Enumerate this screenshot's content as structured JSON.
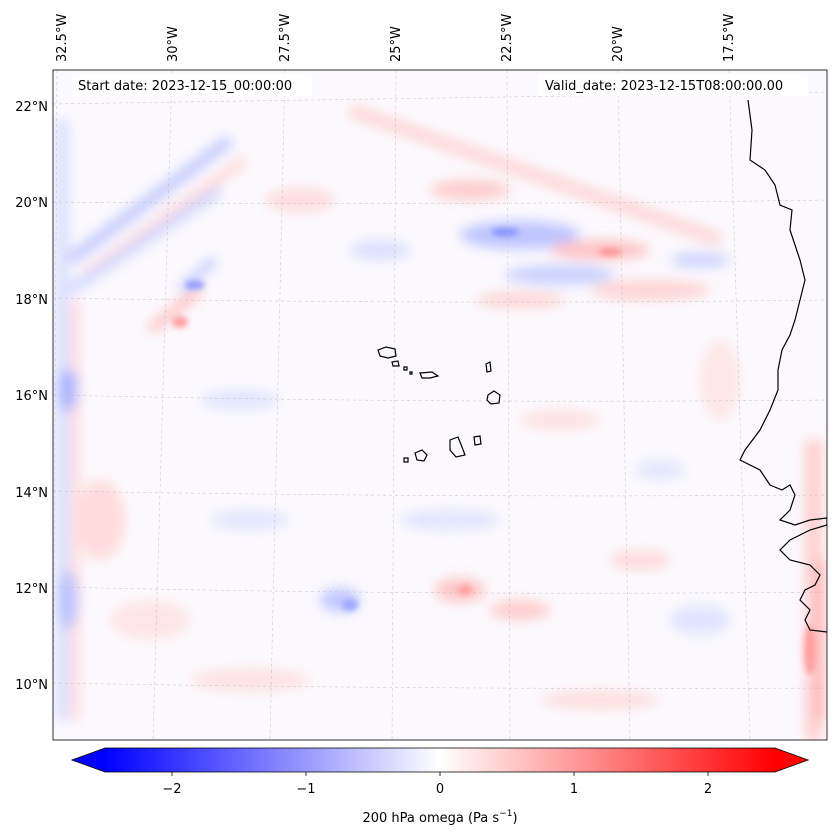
{
  "chart_data": {
    "type": "heatmap",
    "title": "",
    "start_date_label": "Start date: 2023-12-15_00:00:00",
    "valid_date_label": "Valid_date: 2023-12-15T08:00:00.00",
    "x_ticks": [
      "32.5°W",
      "30°W",
      "27.5°W",
      "25°W",
      "22.5°W",
      "20°W",
      "17.5°W"
    ],
    "y_ticks": [
      "22°N",
      "20°N",
      "18°N",
      "16°N",
      "14°N",
      "12°N",
      "10°N"
    ],
    "x_range_deg": [
      -33,
      -16
    ],
    "y_range_deg": [
      9,
      23
    ],
    "colorbar": {
      "label": "200 hPa omega (Pa s",
      "label_sup": "−1",
      "label_close": ")",
      "ticks": [
        "−2",
        "−1",
        "0",
        "1",
        "2"
      ],
      "tick_values": [
        -2,
        -1,
        0,
        1,
        2
      ],
      "range": [
        -2.5,
        2.5
      ],
      "colormap": "bwr",
      "low_color": "#0000ff",
      "mid_color": "#ffffff",
      "high_color": "#ff0000"
    },
    "grid": true,
    "features": [
      "coastline",
      "Cape Verde islands"
    ]
  }
}
